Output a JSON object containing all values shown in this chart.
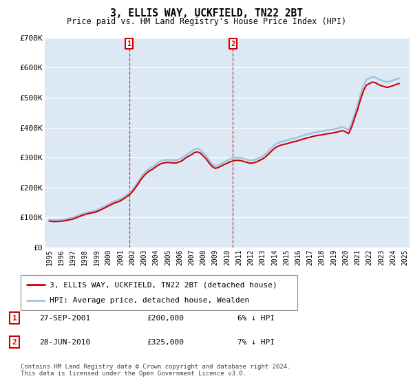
{
  "title": "3, ELLIS WAY, UCKFIELD, TN22 2BT",
  "subtitle": "Price paid vs. HM Land Registry's House Price Index (HPI)",
  "legend_line1": "3, ELLIS WAY, UCKFIELD, TN22 2BT (detached house)",
  "legend_line2": "HPI: Average price, detached house, Wealden",
  "transactions": [
    {
      "label": "1",
      "date": "27-SEP-2001",
      "price": "£200,000",
      "pct": "6% ↓ HPI",
      "x_year": 2001.74
    },
    {
      "label": "2",
      "date": "28-JUN-2010",
      "price": "£325,000",
      "pct": "7% ↓ HPI",
      "x_year": 2010.49
    }
  ],
  "footnote_line1": "Contains HM Land Registry data © Crown copyright and database right 2024.",
  "footnote_line2": "This data is licensed under the Open Government Licence v3.0.",
  "ylim": [
    0,
    700000
  ],
  "yticks": [
    0,
    100000,
    200000,
    300000,
    400000,
    500000,
    600000,
    700000
  ],
  "ytick_labels": [
    "£0",
    "£100K",
    "£200K",
    "£300K",
    "£400K",
    "£500K",
    "£600K",
    "£700K"
  ],
  "xlim_start": 1994.6,
  "xlim_end": 2025.4,
  "hpi_color": "#9ec4e0",
  "price_color": "#cc0000",
  "plot_bg": "#dce9f5",
  "grid_color": "#c8d8e8",
  "hpi_data_x": [
    1995.0,
    1995.25,
    1995.5,
    1995.75,
    1996.0,
    1996.25,
    1996.5,
    1996.75,
    1997.0,
    1997.25,
    1997.5,
    1997.75,
    1998.0,
    1998.25,
    1998.5,
    1998.75,
    1999.0,
    1999.25,
    1999.5,
    1999.75,
    2000.0,
    2000.25,
    2000.5,
    2000.75,
    2001.0,
    2001.25,
    2001.5,
    2001.75,
    2002.0,
    2002.25,
    2002.5,
    2002.75,
    2003.0,
    2003.25,
    2003.5,
    2003.75,
    2004.0,
    2004.25,
    2004.5,
    2004.75,
    2005.0,
    2005.25,
    2005.5,
    2005.75,
    2006.0,
    2006.25,
    2006.5,
    2006.75,
    2007.0,
    2007.25,
    2007.5,
    2007.75,
    2008.0,
    2008.25,
    2008.5,
    2008.75,
    2009.0,
    2009.25,
    2009.5,
    2009.75,
    2010.0,
    2010.25,
    2010.5,
    2010.75,
    2011.0,
    2011.25,
    2011.5,
    2011.75,
    2012.0,
    2012.25,
    2012.5,
    2012.75,
    2013.0,
    2013.25,
    2013.5,
    2013.75,
    2014.0,
    2014.25,
    2014.5,
    2014.75,
    2015.0,
    2015.25,
    2015.5,
    2015.75,
    2016.0,
    2016.25,
    2016.5,
    2016.75,
    2017.0,
    2017.25,
    2017.5,
    2017.75,
    2018.0,
    2018.25,
    2018.5,
    2018.75,
    2019.0,
    2019.25,
    2019.5,
    2019.75,
    2020.0,
    2020.25,
    2020.5,
    2020.75,
    2021.0,
    2021.25,
    2021.5,
    2021.75,
    2022.0,
    2022.25,
    2022.5,
    2022.75,
    2023.0,
    2023.25,
    2023.5,
    2023.75,
    2024.0,
    2024.25,
    2024.5
  ],
  "hpi_data_y": [
    93000,
    92000,
    91500,
    92000,
    93000,
    94000,
    96000,
    98000,
    100000,
    104000,
    108000,
    112000,
    115000,
    118000,
    120000,
    122000,
    125000,
    130000,
    135000,
    140000,
    145000,
    150000,
    155000,
    158000,
    162000,
    168000,
    175000,
    182000,
    192000,
    205000,
    220000,
    235000,
    248000,
    258000,
    265000,
    270000,
    278000,
    285000,
    290000,
    292000,
    293000,
    292000,
    291000,
    292000,
    295000,
    300000,
    308000,
    315000,
    320000,
    328000,
    330000,
    325000,
    315000,
    305000,
    290000,
    278000,
    272000,
    275000,
    280000,
    285000,
    290000,
    295000,
    298000,
    300000,
    300000,
    298000,
    295000,
    292000,
    290000,
    292000,
    295000,
    300000,
    305000,
    312000,
    322000,
    332000,
    342000,
    348000,
    352000,
    355000,
    357000,
    360000,
    363000,
    365000,
    368000,
    372000,
    375000,
    378000,
    380000,
    383000,
    385000,
    387000,
    388000,
    390000,
    392000,
    393000,
    395000,
    397000,
    400000,
    402000,
    398000,
    392000,
    415000,
    445000,
    475000,
    510000,
    540000,
    560000,
    565000,
    570000,
    568000,
    562000,
    558000,
    555000,
    552000,
    555000,
    558000,
    562000,
    565000
  ],
  "price_data_x": [
    1995.0,
    1995.25,
    1995.5,
    1995.75,
    1996.0,
    1996.25,
    1996.5,
    1996.75,
    1997.0,
    1997.25,
    1997.5,
    1997.75,
    1998.0,
    1998.25,
    1998.5,
    1998.75,
    1999.0,
    1999.25,
    1999.5,
    1999.75,
    2000.0,
    2000.25,
    2000.5,
    2000.75,
    2001.0,
    2001.25,
    2001.5,
    2001.75,
    2002.0,
    2002.25,
    2002.5,
    2002.75,
    2003.0,
    2003.25,
    2003.5,
    2003.75,
    2004.0,
    2004.25,
    2004.5,
    2004.75,
    2005.0,
    2005.25,
    2005.5,
    2005.75,
    2006.0,
    2006.25,
    2006.5,
    2006.75,
    2007.0,
    2007.25,
    2007.5,
    2007.75,
    2008.0,
    2008.25,
    2008.5,
    2008.75,
    2009.0,
    2009.25,
    2009.5,
    2009.75,
    2010.0,
    2010.25,
    2010.5,
    2010.75,
    2011.0,
    2011.25,
    2011.5,
    2011.75,
    2012.0,
    2012.25,
    2012.5,
    2012.75,
    2013.0,
    2013.25,
    2013.5,
    2013.75,
    2014.0,
    2014.25,
    2014.5,
    2014.75,
    2015.0,
    2015.25,
    2015.5,
    2015.75,
    2016.0,
    2016.25,
    2016.5,
    2016.75,
    2017.0,
    2017.25,
    2017.5,
    2017.75,
    2018.0,
    2018.25,
    2018.5,
    2018.75,
    2019.0,
    2019.25,
    2019.5,
    2019.75,
    2020.0,
    2020.25,
    2020.5,
    2020.75,
    2021.0,
    2021.25,
    2021.5,
    2021.75,
    2022.0,
    2022.25,
    2022.5,
    2022.75,
    2023.0,
    2023.25,
    2023.5,
    2023.75,
    2024.0,
    2024.25,
    2024.5
  ],
  "price_data_y": [
    88000,
    87000,
    86500,
    87000,
    88000,
    89000,
    91000,
    93000,
    95000,
    99000,
    103000,
    107000,
    110000,
    113000,
    115000,
    117000,
    120000,
    124000,
    129000,
    134000,
    139000,
    144000,
    149000,
    152000,
    156000,
    162000,
    169000,
    176000,
    186000,
    199000,
    213000,
    228000,
    240000,
    250000,
    257000,
    262000,
    270000,
    276000,
    281000,
    283000,
    284000,
    283000,
    282000,
    283000,
    286000,
    291000,
    299000,
    305000,
    310000,
    317000,
    319000,
    315000,
    305000,
    295000,
    281000,
    270000,
    264000,
    267000,
    272000,
    277000,
    281000,
    286000,
    289000,
    291000,
    291000,
    289000,
    286000,
    283000,
    281000,
    283000,
    286000,
    291000,
    296000,
    303000,
    312000,
    322000,
    331000,
    337000,
    341000,
    344000,
    346000,
    349000,
    352000,
    354000,
    357000,
    360000,
    363000,
    366000,
    368000,
    371000,
    373000,
    375000,
    376000,
    378000,
    380000,
    381000,
    383000,
    385000,
    388000,
    390000,
    386000,
    380000,
    402000,
    431000,
    460000,
    494000,
    523000,
    542000,
    547000,
    552000,
    550000,
    544000,
    540000,
    537000,
    534000,
    537000,
    540000,
    544000,
    547000
  ]
}
